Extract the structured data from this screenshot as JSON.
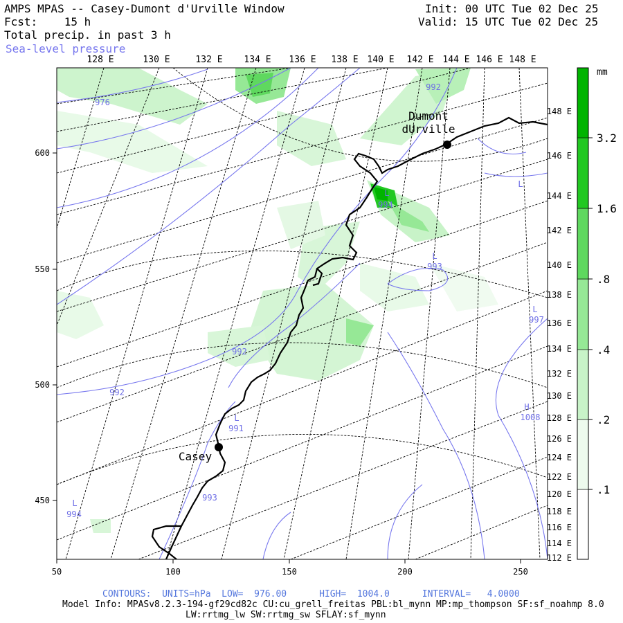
{
  "header": {
    "title": "AMPS MPAS -- Casey-Dumont d'Urville Window",
    "fcst": "Fcst:    15 h",
    "field": "Total precip. in past 3 h",
    "overlay": "Sea-level pressure",
    "init": "Init: 00 UTC Tue 02 Dec 25",
    "valid": "Valid: 15 UTC Tue 02 Dec 25"
  },
  "lon_labels_top": [
    "128 E",
    "130 E",
    "132 E",
    "134 E",
    "136 E",
    "138 E",
    "140 E",
    "142 E",
    "144 E",
    "146 E",
    "148 E"
  ],
  "lon_labels_right": [
    "148 E",
    "146 E",
    "144 E",
    "142 E",
    "140 E",
    "138 E",
    "136 E",
    "134 E",
    "132 E",
    "130 E",
    "128 E",
    "126 E",
    "124 E",
    "122 E",
    "120 E",
    "118 E",
    "116 E",
    "114 E",
    "112 E"
  ],
  "x_ticks": [
    "50",
    "100",
    "150",
    "200",
    "250"
  ],
  "y_ticks": [
    "600",
    "550",
    "500",
    "450"
  ],
  "colorbar": {
    "units": "mm",
    "levels": [
      ".1",
      ".2",
      ".4",
      ".8",
      "1.6",
      "3.2"
    ],
    "colors": [
      "#ffffff",
      "#eefbee",
      "#c8f3c8",
      "#96e896",
      "#5fd85f",
      "#22c822",
      "#00b400"
    ]
  },
  "places": [
    {
      "name": "Dumont\ndUrville"
    },
    {
      "name": "Casey"
    }
  ],
  "isobar_labels": [
    "976",
    "992",
    "994",
    "993",
    "997",
    "992",
    "992",
    "991",
    "1008",
    "993",
    "994"
  ],
  "pressure_centers": [
    "L",
    "L",
    "L",
    "L",
    "L",
    "H",
    "L"
  ],
  "footer": {
    "contours": "CONTOURS:  UNITS=hPa  LOW=  976.00      HIGH=  1004.0      INTERVAL=   4.0000",
    "model": "Model Info: MPASv8.2.3-194-gf29cd82c CU:cu_grell_freitas PBL:bl_mynn MP:mp_thompson SF:sf_noahmp 8.0",
    "physics": "LW:rrtmg_lw SW:rrtmg_sw SFLAY:sf_mynn"
  }
}
